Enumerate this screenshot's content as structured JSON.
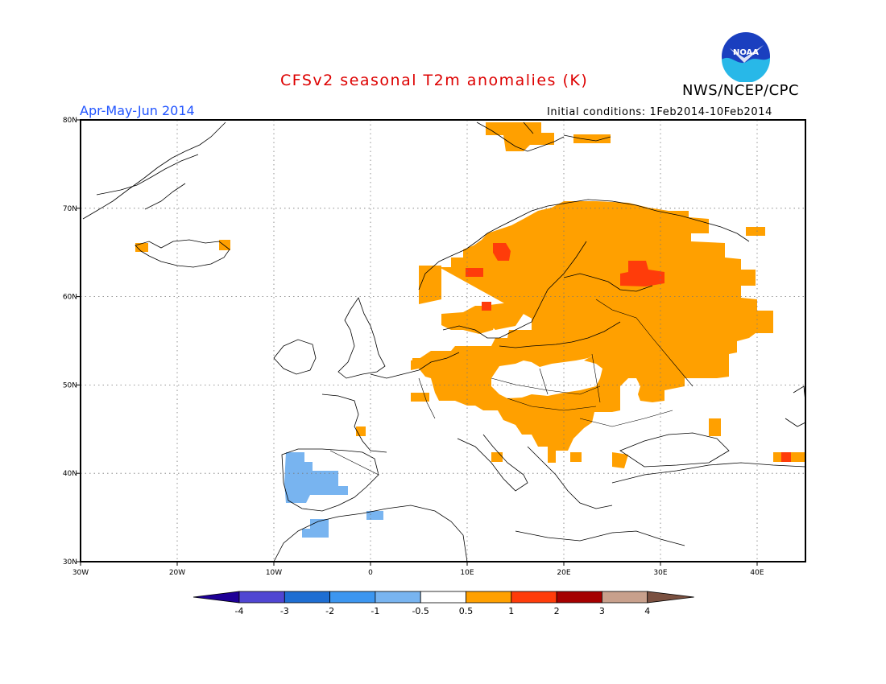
{
  "header": {
    "title": "CFSv2 seasonal T2m anomalies (K)",
    "org": "NWS/NCEP/CPC",
    "period": "Apr-May-Jun 2014",
    "init_conditions": "Initial conditions: 1Feb2014-10Feb2014",
    "logo_text": "NOAA"
  },
  "map": {
    "projection": "lat-lon",
    "lon_range": [
      -30,
      45
    ],
    "lat_range": [
      30,
      80
    ],
    "lat_ticks": [
      "30N",
      "40N",
      "50N",
      "60N",
      "70N",
      "80N"
    ],
    "lon_ticks": [
      "30W",
      "20W",
      "10W",
      "0",
      "10E",
      "20E",
      "30E",
      "40E"
    ],
    "grid": "dotted"
  },
  "colors": {
    "title": "#dd0000",
    "period": "#2255ff",
    "warm_0_5_1": "#ffa000",
    "warm_1_2": "#ff3c0a",
    "cool_m1_m0_5": "#78b4f0"
  },
  "colorbar": {
    "colors": [
      "#1e0096",
      "#5046d2",
      "#1e6ed2",
      "#3c96f0",
      "#78b4f0",
      "#ffffff",
      "#ffa000",
      "#ff3c0a",
      "#a50000",
      "#c8a08c",
      "#7a5040"
    ],
    "labels": [
      "-4",
      "-3",
      "-2",
      "-1",
      "-0.5",
      "0.5",
      "1",
      "2",
      "3",
      "4"
    ]
  }
}
